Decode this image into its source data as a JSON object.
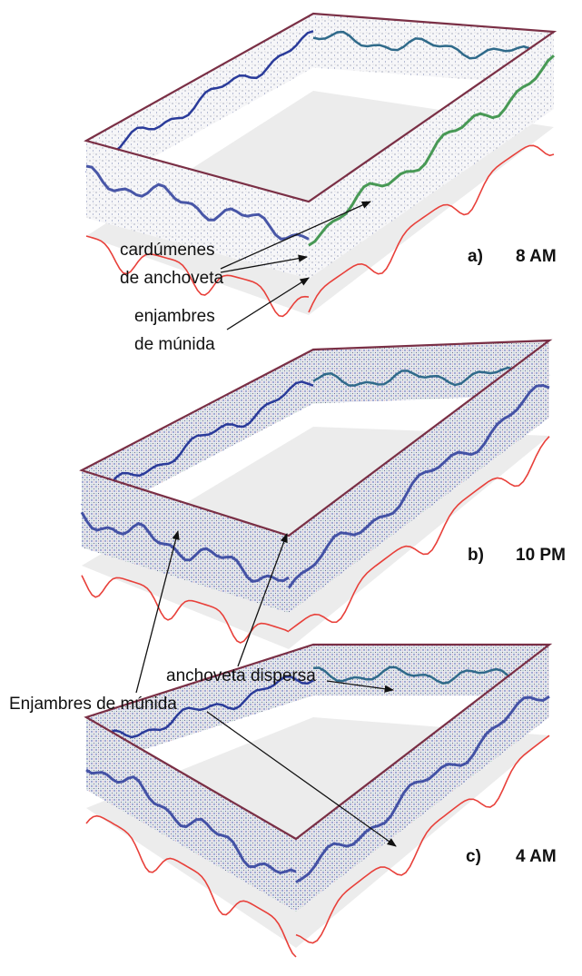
{
  "figure": {
    "panels": [
      {
        "label": "a)",
        "time": "8 AM"
      },
      {
        "label": "b)",
        "time": "10 PM"
      },
      {
        "label": "c)",
        "time": "4 AM"
      }
    ],
    "annotations": [
      {
        "lines": [
          "cardúmenes",
          "de anchoveta"
        ]
      },
      {
        "lines": [
          "enjambres",
          "de múnida"
        ]
      },
      {
        "lines": [
          "anchoveta dispersa"
        ]
      },
      {
        "lines": [
          "Enjambres de múnida"
        ]
      }
    ]
  }
}
